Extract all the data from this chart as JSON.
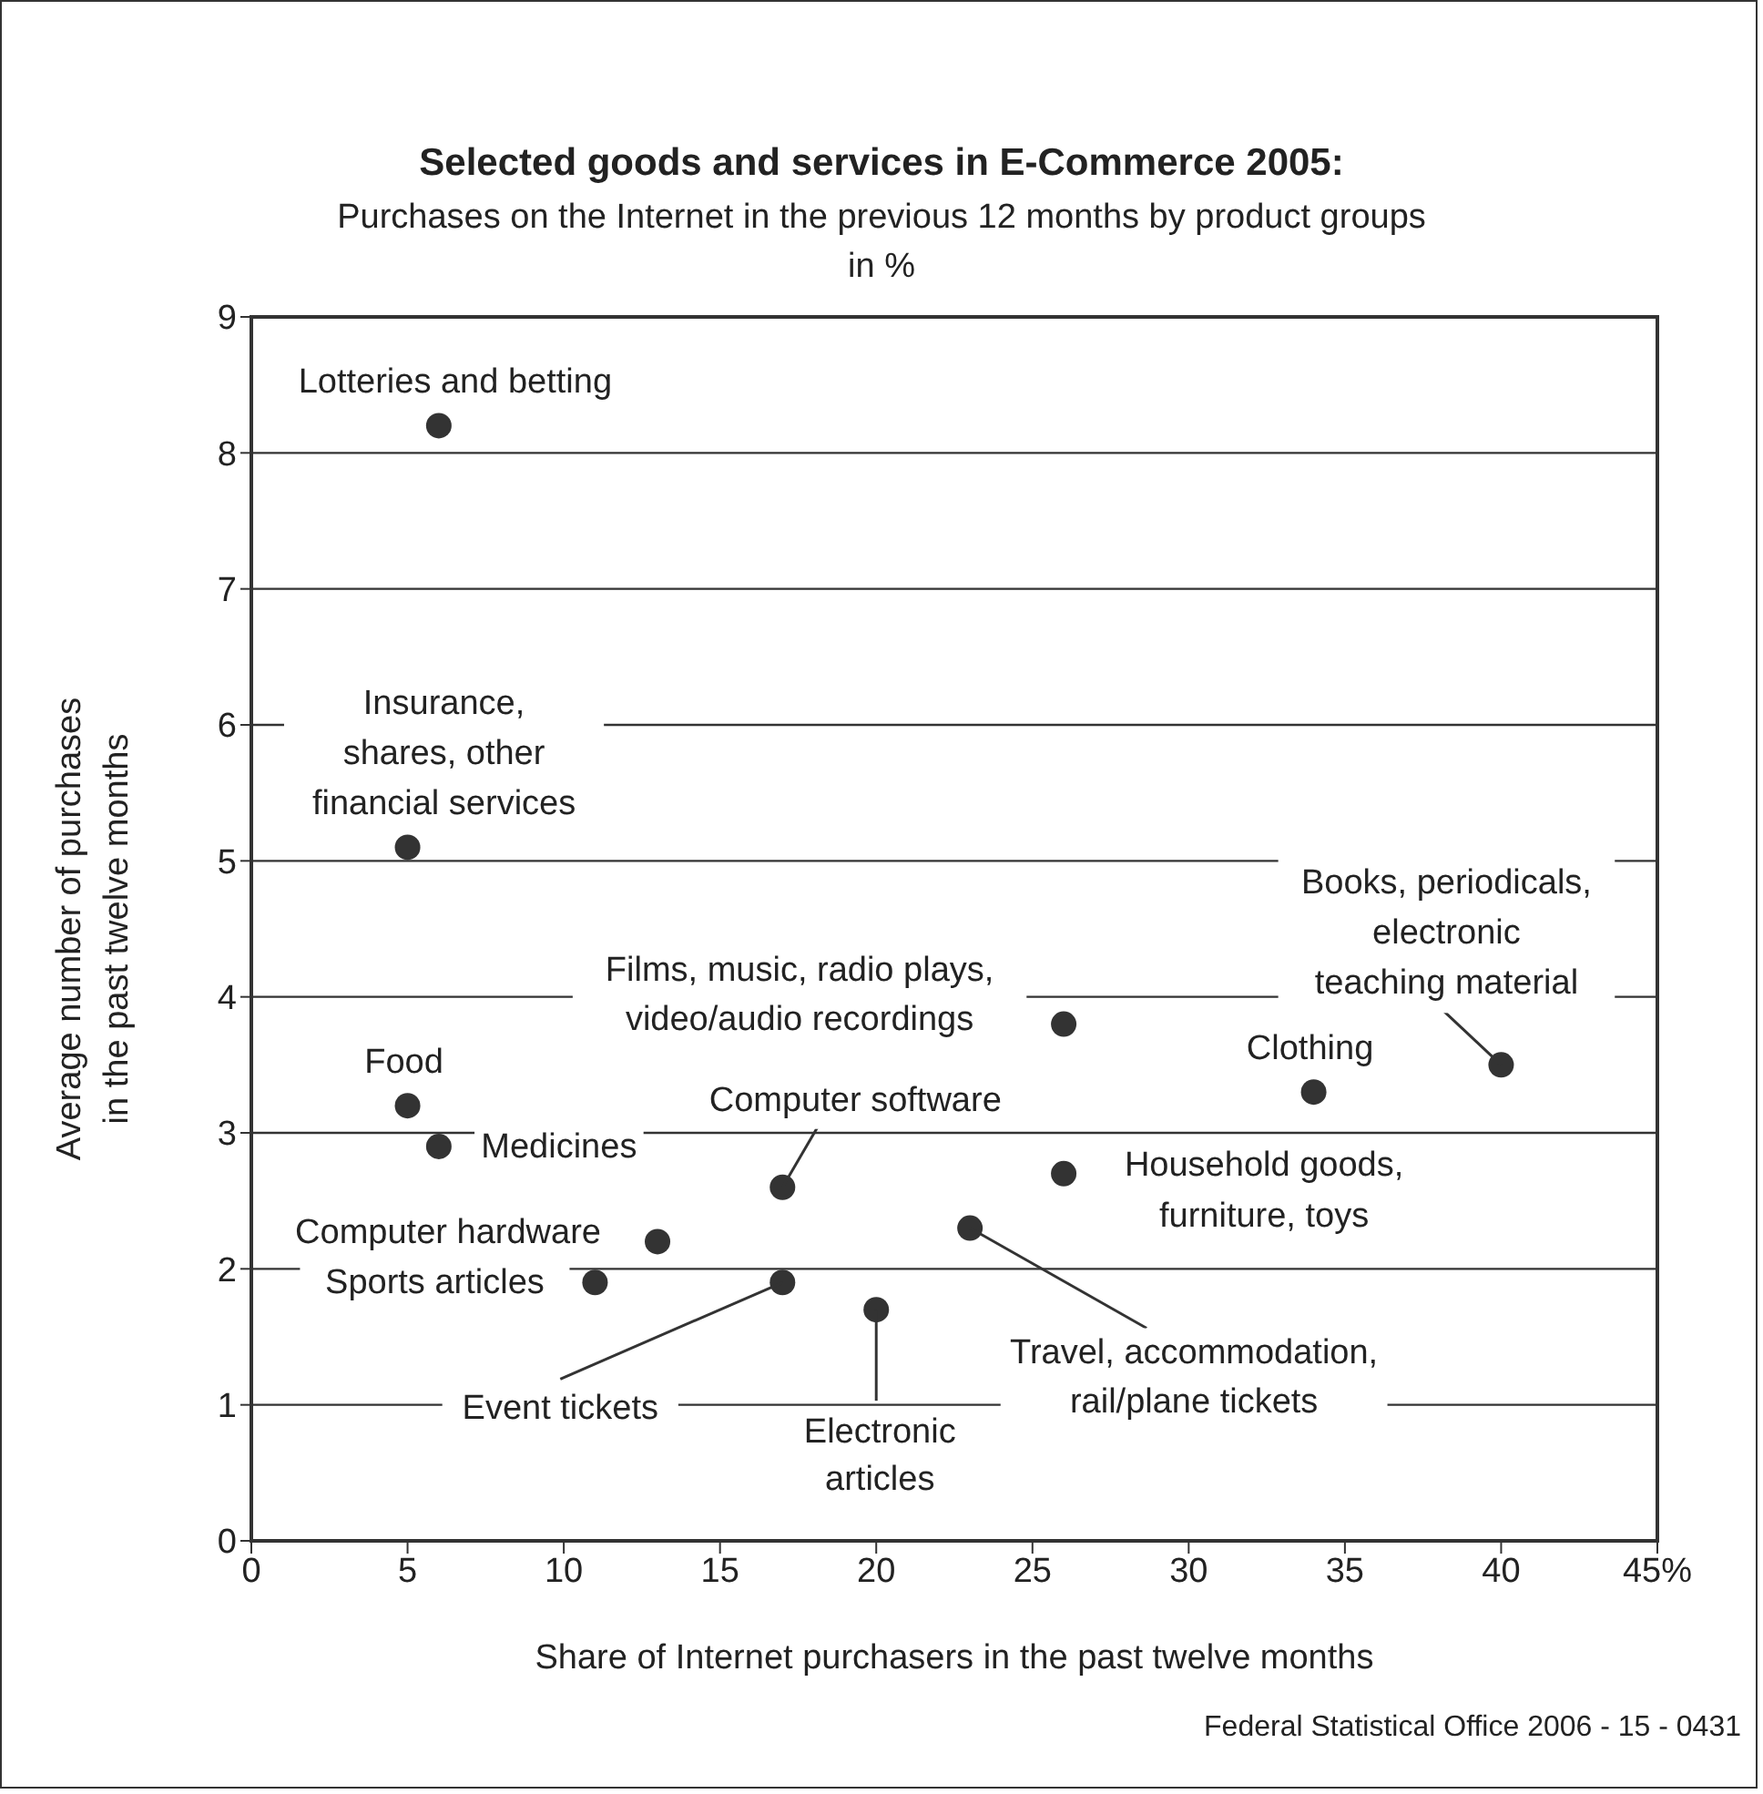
{
  "chart_data": {
    "type": "scatter",
    "title": "Selected goods and services in E-Commerce 2005:",
    "subtitle": "Purchases on the Internet in the previous 12 months by product groups in %",
    "xlabel": "Share of Internet purchasers in the past twelve months",
    "ylabel": "Average number of purchases in the past twelve months",
    "x": [
      6,
      5,
      26,
      5,
      6,
      17,
      13,
      11,
      17,
      20,
      23,
      26,
      34,
      40
    ],
    "values": [
      8.2,
      5.1,
      3.8,
      3.2,
      2.9,
      2.6,
      2.2,
      1.9,
      1.9,
      1.7,
      2.3,
      2.7,
      3.3,
      3.5
    ],
    "color": "#333333",
    "marker": "circle",
    "xlim": [
      0,
      45
    ],
    "ylim": [
      0,
      9
    ],
    "xticks": [
      0,
      5,
      10,
      15,
      20,
      25,
      30,
      35,
      40,
      {
        "value": 45,
        "label": "45%"
      }
    ],
    "yticks": [
      0,
      1,
      2,
      3,
      4,
      5,
      6,
      7,
      8,
      9
    ],
    "grid": "y",
    "annotations": [
      {
        "text": "Lotteries and betting",
        "x": 6,
        "y": 8.2
      },
      {
        "text": "Insurance, shares, other financial services",
        "x": 5,
        "y": 5.1
      },
      {
        "text": "Films, music, radio plays, video/audio recordings",
        "x": 26,
        "y": 3.8
      },
      {
        "text": "Food",
        "x": 5,
        "y": 3.2
      },
      {
        "text": "Medicines",
        "x": 6,
        "y": 2.9
      },
      {
        "text": "Computer software",
        "x": 17,
        "y": 2.6
      },
      {
        "text": "Computer hardware",
        "x": 13,
        "y": 2.2
      },
      {
        "text": "Sports articles",
        "x": 11,
        "y": 1.9
      },
      {
        "text": "Event tickets",
        "x": 17,
        "y": 1.9
      },
      {
        "text": "Electronic articles",
        "x": 20,
        "y": 1.7
      },
      {
        "text": "Travel, accommodation, rail/plane tickets",
        "x": 23,
        "y": 2.3
      },
      {
        "text": "Household goods, furniture, toys",
        "x": 26,
        "y": 2.7
      },
      {
        "text": "Clothing",
        "x": 34,
        "y": 3.3
      },
      {
        "text": "Books, periodicals, electronic teaching material",
        "x": 40,
        "y": 3.5
      },
      "Federal Statistical Office 2006 - 15 - 0431"
    ]
  }
}
